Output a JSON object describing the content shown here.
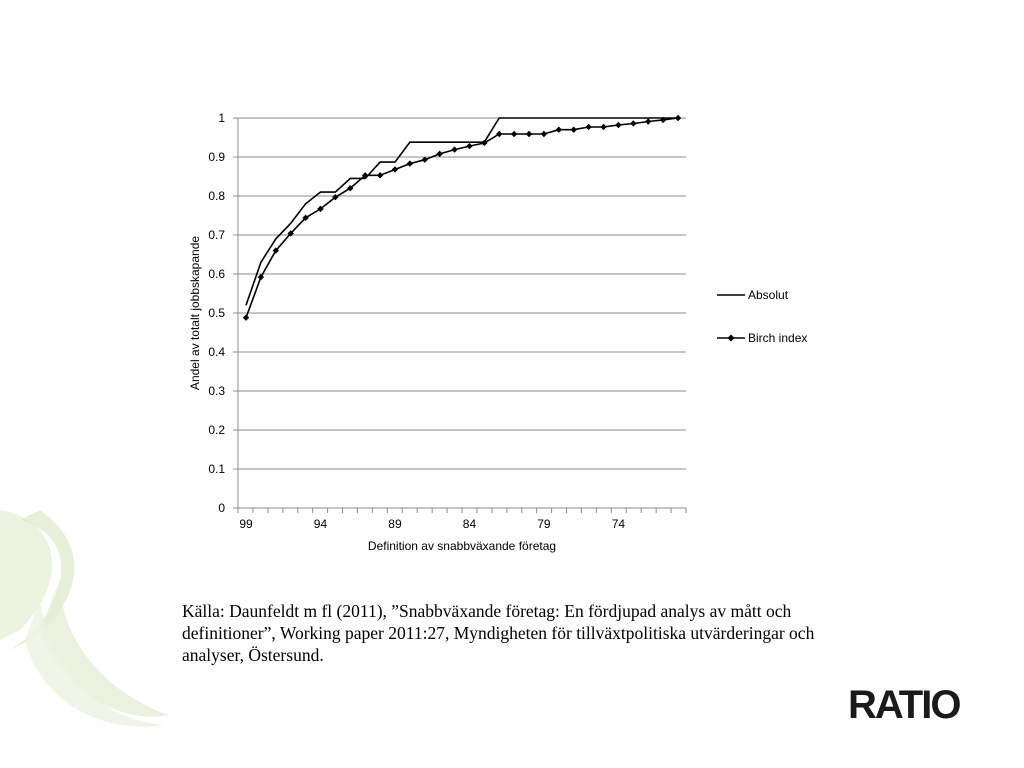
{
  "chart_data": {
    "type": "line",
    "title": "",
    "xlabel": "Definition av snabbväxande företag",
    "ylabel": "Andel av totalt jobbskapande",
    "x": [
      99,
      98,
      97,
      96,
      95,
      94,
      93,
      92,
      91,
      90,
      89,
      88,
      87,
      86,
      85,
      84,
      83,
      82,
      81,
      80,
      79,
      78,
      77,
      76,
      75,
      74,
      73,
      72,
      71,
      70
    ],
    "x_tick_labels": [
      "99",
      "94",
      "89",
      "84",
      "79",
      "74"
    ],
    "y_tick_labels": [
      "0",
      "0.1",
      "0.2",
      "0.3",
      "0.4",
      "0.5",
      "0.6",
      "0.7",
      "0.8",
      "0.9",
      "1"
    ],
    "ylim": [
      0,
      1
    ],
    "grid": true,
    "legend_position": "right",
    "series": [
      {
        "name": "Absolut",
        "marker": "none",
        "values": [
          0.52,
          0.63,
          0.69,
          0.73,
          0.78,
          0.81,
          0.81,
          0.845,
          0.845,
          0.887,
          0.887,
          0.938,
          0.938,
          0.938,
          0.938,
          0.938,
          0.938,
          1.0,
          1.0,
          1.0,
          1.0,
          1.0,
          1.0,
          1.0,
          1.0,
          1.0,
          1.0,
          1.0,
          1.0,
          1.0
        ]
      },
      {
        "name": "Birch index",
        "marker": "diamond",
        "values": [
          0.488,
          0.592,
          0.66,
          0.704,
          0.744,
          0.767,
          0.797,
          0.82,
          0.853,
          0.853,
          0.868,
          0.883,
          0.893,
          0.908,
          0.919,
          0.928,
          0.936,
          0.959,
          0.959,
          0.959,
          0.959,
          0.97,
          0.97,
          0.977,
          0.977,
          0.982,
          0.986,
          0.991,
          0.995,
          1.0
        ]
      }
    ]
  },
  "caption": "Källa: Daunfeldt m fl (2011), ”Snabbväxande företag: En fördjupad analys av mått och definitioner”, Working paper 2011:27, Myndigheten för tillväxtpolitiska utvärderingar och analyser, Östersund.",
  "logo": "RATIO",
  "colors": {
    "line": "#000000",
    "grid": "#8c8c8c",
    "decor": "#e3ecd2"
  }
}
